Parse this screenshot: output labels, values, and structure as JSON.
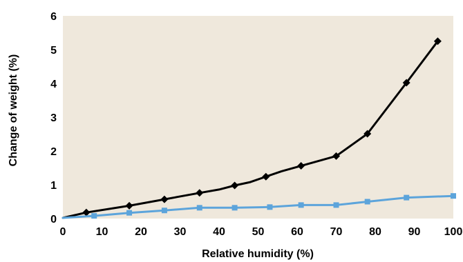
{
  "chart_data": {
    "type": "line",
    "title": "",
    "xlabel": "Relative humidity (%)",
    "ylabel": "Change of weight (%)",
    "xlim": [
      0,
      100
    ],
    "ylim": [
      0,
      6
    ],
    "xticks": [
      "0",
      "10",
      "20",
      "30",
      "40",
      "50",
      "60",
      "70",
      "80",
      "90",
      "100"
    ],
    "yticks": [
      "0",
      "1",
      "2",
      "3",
      "4",
      "5",
      "6"
    ],
    "grid": false,
    "legend": "none",
    "plot_background": "#efe8dc",
    "series": [
      {
        "color": "#000000",
        "marker": "diamond",
        "x": [
          0,
          6,
          17,
          26,
          35,
          40,
          44,
          48,
          52,
          56,
          61,
          70,
          78,
          88,
          96
        ],
        "y": [
          0.02,
          0.18,
          0.38,
          0.57,
          0.76,
          0.86,
          0.98,
          1.08,
          1.24,
          1.4,
          1.56,
          1.85,
          2.51,
          4.02,
          5.25
        ],
        "marker_idx": [
          1,
          2,
          3,
          4,
          6,
          8,
          10,
          11,
          12,
          13,
          14
        ]
      },
      {
        "color": "#5ca4db",
        "marker": "square",
        "x": [
          0,
          8,
          17,
          26,
          35,
          44,
          53,
          61,
          70,
          78,
          88,
          100
        ],
        "y": [
          0.02,
          0.08,
          0.17,
          0.24,
          0.32,
          0.32,
          0.34,
          0.4,
          0.4,
          0.5,
          0.62,
          0.67
        ],
        "marker_idx": [
          1,
          2,
          3,
          4,
          5,
          6,
          7,
          8,
          9,
          10,
          11
        ]
      }
    ]
  }
}
